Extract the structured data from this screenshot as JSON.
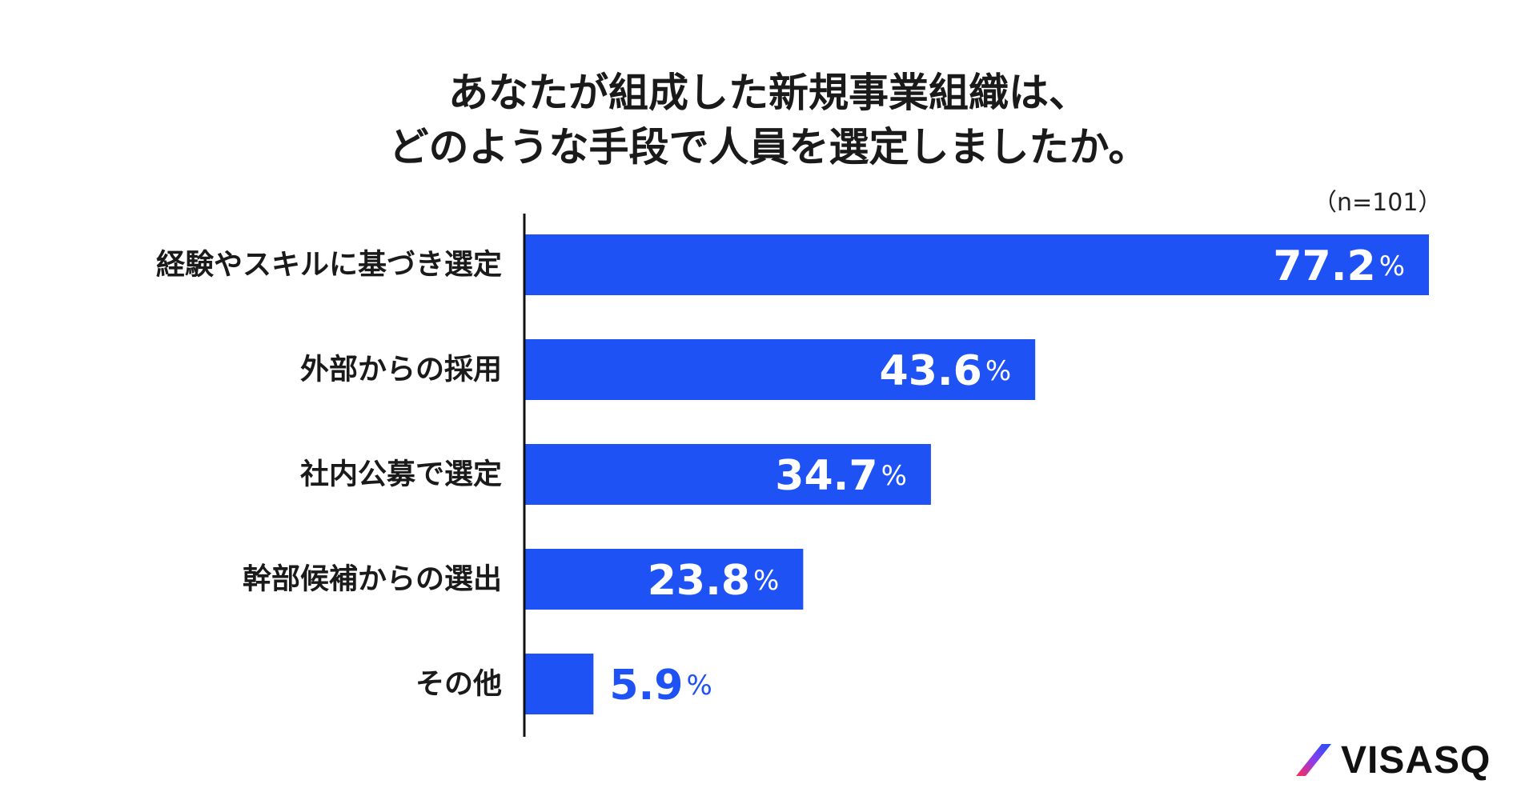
{
  "title": {
    "line1": "あなたが組成した新規事業組織は、",
    "line2": "どのような手段で人員を選定しましたか。"
  },
  "sample_note": "（n=101）",
  "unit": "%",
  "colors": {
    "bar": "#1f52f5",
    "label_inside": "#ffffff",
    "label_outside": "#1f52f5",
    "axis": "#111111"
  },
  "chart_data": {
    "type": "bar",
    "orientation": "horizontal",
    "categories": [
      "経験やスキルに基づき選定",
      "外部からの採用",
      "社内公募で選定",
      "幹部候補からの選出",
      "その他"
    ],
    "values": [
      77.2,
      43.6,
      34.7,
      23.8,
      5.9
    ],
    "value_labels": [
      "77.2",
      "43.6",
      "34.7",
      "23.8",
      "5.9"
    ],
    "xlim": [
      0,
      77.2
    ],
    "grid": false,
    "legend": "none"
  },
  "brand": {
    "name": "VISASQ",
    "icon": "visasq-slash-logo-icon"
  }
}
